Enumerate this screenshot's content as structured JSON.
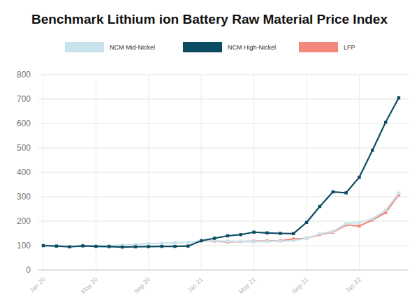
{
  "chart_data": {
    "type": "line",
    "title": "Benchmark Lithium ion Battery Raw Material Price Index",
    "categories": [
      "Jan 20",
      null,
      null,
      null,
      "May 20",
      null,
      null,
      null,
      "Sep 20",
      null,
      null,
      null,
      "Jan 21",
      null,
      null,
      null,
      "May 21",
      null,
      null,
      null,
      "Sep 21",
      null,
      null,
      null,
      "Jan 22",
      null,
      null,
      null
    ],
    "series": [
      {
        "name": "NCM Mid-Nickel",
        "color": "#c8e3ec",
        "marker": "square",
        "values": [
          100,
          98,
          97,
          98,
          98,
          100,
          102,
          105,
          108,
          110,
          112,
          113,
          120,
          119,
          118,
          117,
          116,
          117,
          118,
          120,
          130,
          148,
          158,
          190,
          195,
          210,
          245,
          315
        ]
      },
      {
        "name": "NCM High-Nickel",
        "color": "#0b4c63",
        "marker": "square",
        "values": [
          100,
          98,
          95,
          99,
          97,
          96,
          94,
          95,
          96,
          97,
          97,
          98,
          120,
          130,
          140,
          145,
          155,
          152,
          150,
          149,
          195,
          260,
          320,
          316,
          380,
          490,
          605,
          705
        ]
      },
      {
        "name": "LFP",
        "color": "#f4877c",
        "marker": "square",
        "values": [
          null,
          null,
          null,
          null,
          null,
          null,
          null,
          null,
          null,
          null,
          null,
          null,
          120,
          118,
          115,
          117,
          118,
          119,
          120,
          127,
          130,
          145,
          155,
          185,
          180,
          205,
          235,
          308
        ]
      }
    ],
    "ylim": [
      0,
      800
    ],
    "yticks": [
      0,
      100,
      200,
      300,
      400,
      500,
      600,
      700,
      800
    ],
    "grid": true,
    "legend": "top"
  }
}
